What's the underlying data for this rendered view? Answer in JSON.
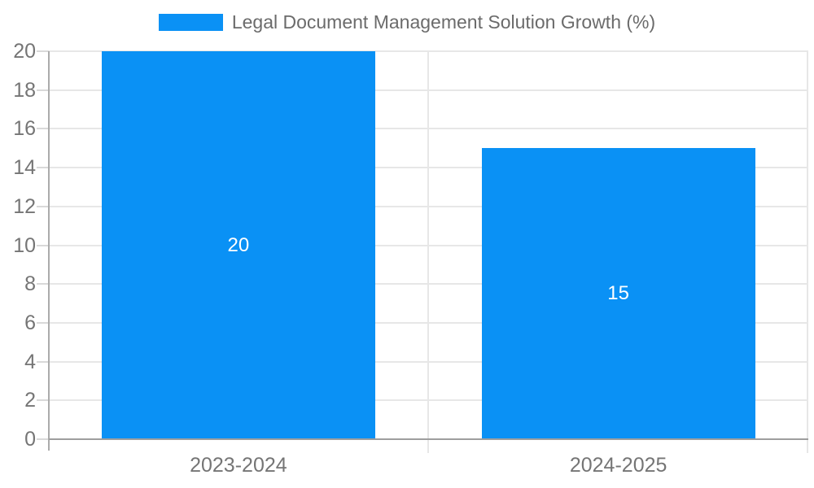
{
  "chart_data": {
    "type": "bar",
    "title": "Legal Document Management Solution Growth (%)",
    "categories": [
      "2023-2024",
      "2024-2025"
    ],
    "values": [
      20,
      15
    ],
    "value_labels": [
      "20",
      "15"
    ],
    "xlabel": "",
    "ylabel": "",
    "ylim": [
      0,
      20
    ],
    "yticks": [
      0,
      2,
      4,
      6,
      8,
      10,
      12,
      14,
      16,
      18,
      20
    ],
    "grid": true,
    "legend_position": "top",
    "colors": {
      "bar": "#0a91f5",
      "bar_value_label": "#ffffff",
      "axis_tick_label": "#757575",
      "legend_text": "#6b6b6b",
      "gridline": "#e7e7e7",
      "tick_mark": "#d9d9d9",
      "x_axis_line": "#9e9e9e",
      "y_axis_line": "#ababab",
      "background": "#ffffff"
    }
  }
}
